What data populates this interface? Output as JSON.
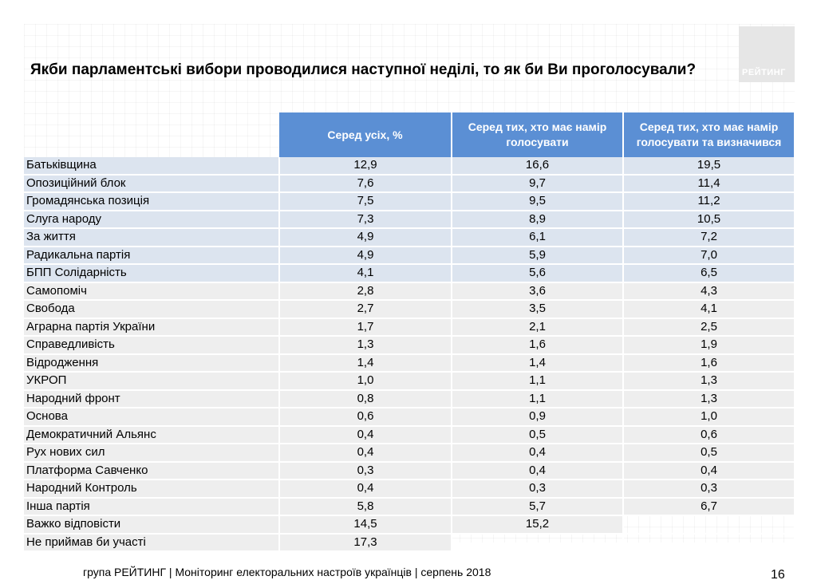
{
  "title": "Якби парламентські вибори проводилися наступної неділі, то як би Ви проголосували?",
  "logo_text": "РЕЙТИНГ",
  "columns": [
    "Серед усіх, %",
    "Серед тих, хто має намір голосувати",
    "Серед тих, хто має намір голосувати та визначився"
  ],
  "rows": [
    {
      "label": "Батьківщина",
      "v1": "12,9",
      "v2": "16,6",
      "v3": "19,5",
      "tone": "blue"
    },
    {
      "label": "Опозиційний блок",
      "v1": "7,6",
      "v2": "9,7",
      "v3": "11,4",
      "tone": "blue"
    },
    {
      "label": "Громадянська позиція",
      "v1": "7,5",
      "v2": "9,5",
      "v3": "11,2",
      "tone": "blue"
    },
    {
      "label": "Слуга народу",
      "v1": "7,3",
      "v2": "8,9",
      "v3": "10,5",
      "tone": "blue"
    },
    {
      "label": "За життя",
      "v1": "4,9",
      "v2": "6,1",
      "v3": "7,2",
      "tone": "blue"
    },
    {
      "label": "Радикальна партія",
      "v1": "4,9",
      "v2": "5,9",
      "v3": "7,0",
      "tone": "blue"
    },
    {
      "label": "БПП Солідарність",
      "v1": "4,1",
      "v2": "5,6",
      "v3": "6,5",
      "tone": "blue"
    },
    {
      "label": "Самопоміч",
      "v1": "2,8",
      "v2": "3,6",
      "v3": "4,3",
      "tone": "gray"
    },
    {
      "label": "Свобода",
      "v1": "2,7",
      "v2": "3,5",
      "v3": "4,1",
      "tone": "gray"
    },
    {
      "label": "Аграрна партія України",
      "v1": "1,7",
      "v2": "2,1",
      "v3": "2,5",
      "tone": "gray"
    },
    {
      "label": "Справедливість",
      "v1": "1,3",
      "v2": "1,6",
      "v3": "1,9",
      "tone": "gray"
    },
    {
      "label": "Відродження",
      "v1": "1,4",
      "v2": "1,4",
      "v3": "1,6",
      "tone": "gray"
    },
    {
      "label": "УКРОП",
      "v1": "1,0",
      "v2": "1,1",
      "v3": "1,3",
      "tone": "gray"
    },
    {
      "label": "Народний фронт",
      "v1": "0,8",
      "v2": "1,1",
      "v3": "1,3",
      "tone": "gray"
    },
    {
      "label": "Основа",
      "v1": "0,6",
      "v2": "0,9",
      "v3": "1,0",
      "tone": "gray"
    },
    {
      "label": "Демократичний Альянс",
      "v1": "0,4",
      "v2": "0,5",
      "v3": "0,6",
      "tone": "gray"
    },
    {
      "label": "Рух нових сил",
      "v1": "0,4",
      "v2": "0,4",
      "v3": "0,5",
      "tone": "gray"
    },
    {
      "label": "Платформа Савченко",
      "v1": "0,3",
      "v2": "0,4",
      "v3": "0,4",
      "tone": "gray"
    },
    {
      "label": "Народний Контроль",
      "v1": "0,4",
      "v2": "0,3",
      "v3": "0,3",
      "tone": "gray"
    },
    {
      "label": "Інша партія",
      "v1": "5,8",
      "v2": "5,7",
      "v3": "6,7",
      "tone": "gray"
    },
    {
      "label": "Важко відповісти",
      "v1": "14,5",
      "v2": "15,2",
      "v3": "",
      "tone": "gray"
    },
    {
      "label": "Не приймав би участі",
      "v1": "17,3",
      "v2": "",
      "v3": "",
      "tone": "gray"
    }
  ],
  "footer": "група РЕЙТИНГ |  Моніторинг електоральних настроїв українців | серпень  2018",
  "page_number": "16"
}
